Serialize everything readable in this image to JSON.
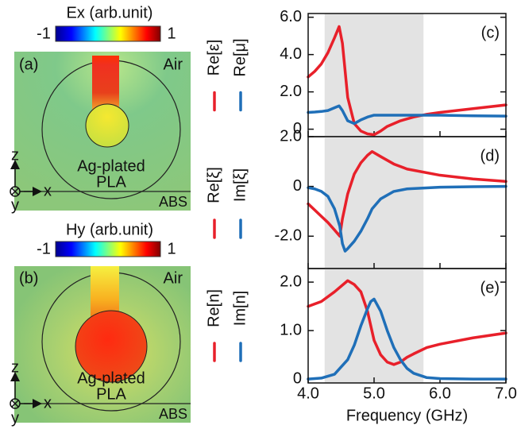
{
  "field_maps": [
    {
      "colorbar_label": "Ex (arb.unit)",
      "colorbar_ticks": [
        -1,
        1
      ],
      "panel_label": "(a)",
      "air": "Air",
      "core": [
        "Ag-plated",
        "PLA"
      ],
      "substrate": "ABS",
      "axes": [
        "z",
        "x",
        "y"
      ]
    },
    {
      "colorbar_label": "Hy (arb.unit)",
      "colorbar_ticks": [
        -1,
        1
      ],
      "panel_label": "(b)",
      "air": "Air",
      "core": [
        "Ag-plated",
        "PLA"
      ],
      "substrate": "ABS",
      "axes": [
        "z",
        "x",
        "y"
      ]
    }
  ],
  "chart_data": [
    {
      "type": "line",
      "panel_label": "(c)",
      "xlim": [
        4,
        7
      ],
      "shaded_range": [
        4.25,
        5.75
      ],
      "ylim": [
        -0.4,
        6.2
      ],
      "yticks": [
        0,
        {
          "value": 2,
          "label": "2.0"
        },
        {
          "value": 4,
          "label": "4.0"
        },
        {
          "value": 6,
          "label": "6.0"
        }
      ],
      "x": [
        4.0,
        4.1,
        4.2,
        4.3,
        4.4,
        4.47,
        4.52,
        4.6,
        4.7,
        4.8,
        4.9,
        5.0,
        5.1,
        5.2,
        5.4,
        5.6,
        5.8,
        6.0,
        6.5,
        7.0
      ],
      "series": [
        {
          "name": "Re[ε]",
          "color": "#e8202a",
          "values": [
            2.8,
            3.1,
            3.5,
            4.1,
            4.9,
            5.5,
            4.6,
            1.7,
            0.3,
            -0.1,
            -0.25,
            -0.3,
            -0.1,
            0.15,
            0.45,
            0.65,
            0.8,
            0.9,
            1.1,
            1.3
          ]
        },
        {
          "name": "Re[μ]",
          "color": "#1f6fb8",
          "values": [
            0.9,
            0.92,
            0.95,
            1.0,
            1.15,
            1.25,
            1.0,
            0.45,
            0.3,
            0.5,
            0.65,
            0.75,
            0.75,
            0.75,
            0.75,
            0.75,
            0.75,
            0.75,
            0.72,
            0.7
          ]
        }
      ]
    },
    {
      "type": "line",
      "panel_label": "(d)",
      "xlim": [
        4,
        7
      ],
      "shaded_range": [
        4.25,
        5.75
      ],
      "ylim": [
        -3.3,
        2.0
      ],
      "yticks": [
        {
          "value": -2,
          "label": "-2.0"
        },
        0,
        {
          "value": 2,
          "label": "2.0"
        }
      ],
      "x": [
        4.0,
        4.1,
        4.2,
        4.3,
        4.4,
        4.48,
        4.52,
        4.56,
        4.6,
        4.7,
        4.8,
        4.9,
        4.97,
        5.1,
        5.3,
        5.5,
        6.0,
        6.5,
        7.0
      ],
      "series": [
        {
          "name": "Re[ξ]",
          "color": "#e8202a",
          "values": [
            -0.7,
            -0.95,
            -1.2,
            -1.45,
            -1.75,
            -2.0,
            -1.3,
            -0.8,
            -0.3,
            0.5,
            0.95,
            1.25,
            1.4,
            1.2,
            0.9,
            0.7,
            0.45,
            0.3,
            0.2
          ]
        },
        {
          "name": "Im[ξ]",
          "color": "#1f6fb8",
          "values": [
            -0.05,
            -0.1,
            -0.2,
            -0.4,
            -0.9,
            -1.6,
            -2.3,
            -2.6,
            -2.5,
            -2.2,
            -1.8,
            -1.3,
            -0.9,
            -0.5,
            -0.2,
            -0.1,
            -0.03,
            -0.01,
            0
          ]
        }
      ]
    },
    {
      "type": "line",
      "panel_label": "(e)",
      "xlim": [
        4,
        7
      ],
      "shaded_range": [
        4.25,
        5.75
      ],
      "xlabel": "Frequency (GHz)",
      "xticks": [
        {
          "value": 4,
          "label": "4.0"
        },
        {
          "value": 5,
          "label": "5.0"
        },
        {
          "value": 6,
          "label": "6.0"
        },
        {
          "value": 7,
          "label": "7.0"
        }
      ],
      "ylim": [
        -0.08,
        2.28
      ],
      "yticks": [
        0,
        {
          "value": 1,
          "label": "1.0"
        },
        {
          "value": 2,
          "label": "2.0"
        }
      ],
      "x": [
        4.0,
        4.2,
        4.4,
        4.6,
        4.7,
        4.8,
        4.9,
        4.95,
        5.0,
        5.1,
        5.2,
        5.3,
        5.4,
        5.5,
        5.6,
        5.8,
        6.0,
        6.5,
        7.0
      ],
      "series": [
        {
          "name": "Re[n]",
          "color": "#e8202a",
          "values": [
            1.5,
            1.6,
            1.8,
            2.03,
            1.95,
            1.8,
            1.4,
            1.1,
            0.8,
            0.5,
            0.35,
            0.3,
            0.35,
            0.45,
            0.52,
            0.65,
            0.72,
            0.85,
            0.95
          ]
        },
        {
          "name": "Im[n]",
          "color": "#1f6fb8",
          "values": [
            0,
            0.02,
            0.1,
            0.4,
            0.7,
            1.1,
            1.45,
            1.6,
            1.65,
            1.4,
            1.0,
            0.65,
            0.4,
            0.22,
            0.12,
            0.03,
            0.01,
            0,
            0
          ]
        }
      ]
    }
  ]
}
